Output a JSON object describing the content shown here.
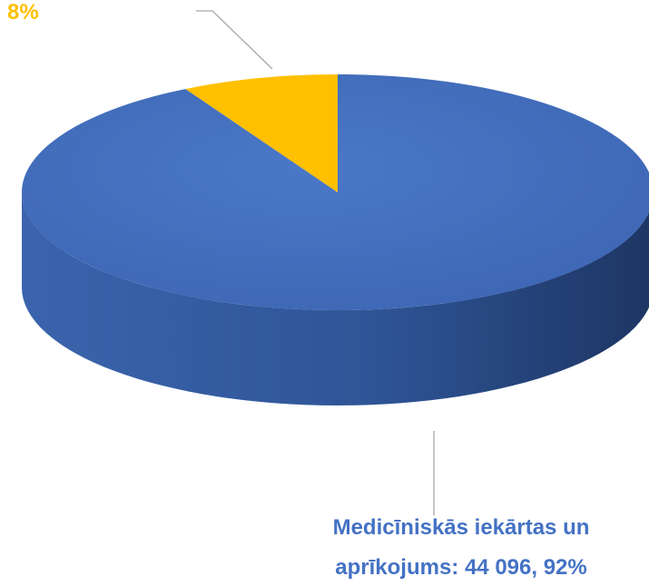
{
  "chart_data": {
    "type": "pie",
    "values": [
      92,
      8
    ],
    "value_labels": [
      "Medicīniskās iekārtas un aprīkojums: 44 096, 92%",
      "8%"
    ],
    "colors": [
      "#4472c4",
      "#ffc000"
    ]
  }
}
